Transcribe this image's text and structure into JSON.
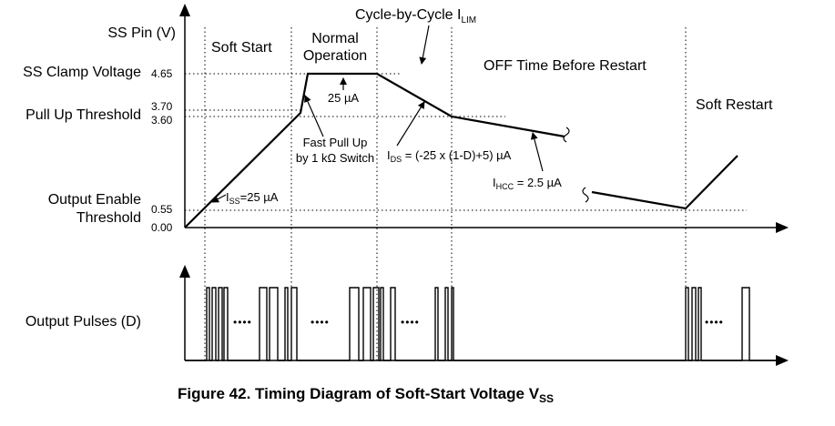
{
  "y_axis_label": "SS Pin (V)",
  "left_labels": {
    "clamp": "SS Clamp Voltage",
    "pullup": "Pull Up Threshold",
    "enable_line1": "Output Enable",
    "enable_line2": "Threshold",
    "pulses": "Output Pulses (D)"
  },
  "ticks": {
    "v465": "4.65",
    "v370": "3.70",
    "v360": "3.60",
    "v055": "0.55",
    "v000": "0.00"
  },
  "phases": {
    "soft_start": "Soft Start",
    "normal_line1": "Normal",
    "normal_line2": "Operation",
    "off_time": "OFF Time Before Restart",
    "soft_restart": "Soft Restart"
  },
  "annotations": {
    "cbc_main": "Cycle-by-Cycle I",
    "cbc_sub": "LIM",
    "iss_main": "I",
    "iss_sub": "SS",
    "iss_val": "=25 µA",
    "ua25": "25 µA",
    "fast_line1": "Fast Pull Up",
    "fast_line2": "by 1 kΩ Switch",
    "ids_main": "I",
    "ids_sub": "DS",
    "ids_val": " = (-25 x (1-D)+5) µA",
    "ihcc_main": "I",
    "ihcc_sub": "HCC",
    "ihcc_val": " = 2.5 µA"
  },
  "ellipsis": "••••",
  "caption": {
    "main": "Figure 42.  Timing Diagram of Soft-Start Voltage V",
    "sub": "SS"
  }
}
